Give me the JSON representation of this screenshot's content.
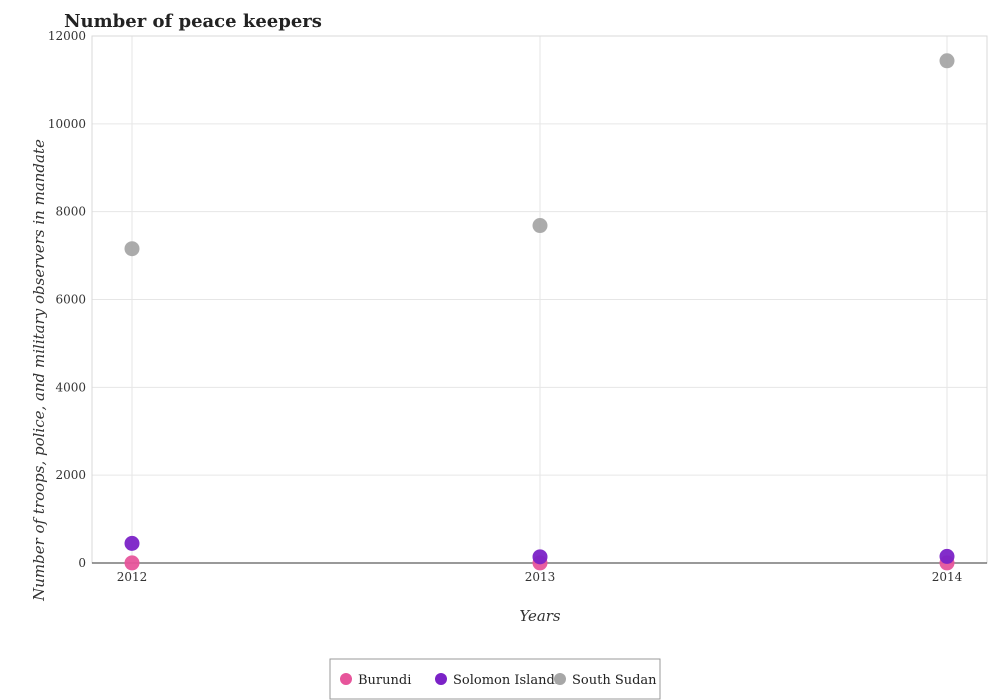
{
  "chart_data": {
    "type": "scatter",
    "title": "Number of peace keepers",
    "xlabel": "Years",
    "ylabel": "Number of troops, police, and military observers in mandate",
    "categories": [
      "2012",
      "2013",
      "2014"
    ],
    "ylim": [
      0,
      12000
    ],
    "yticks": [
      0,
      2000,
      4000,
      6000,
      8000,
      10000,
      12000
    ],
    "grid": true,
    "legend_position": "bottom-center",
    "series": [
      {
        "name": "Burundi",
        "color": "#e7559b",
        "values": [
          2,
          2,
          2
        ]
      },
      {
        "name": "Solomon Islands",
        "color": "#7b22c7",
        "values": [
          447,
          140,
          150
        ]
      },
      {
        "name": "South Sudan",
        "color": "#a7a7a7",
        "values": [
          7157,
          7684,
          11436
        ]
      }
    ]
  }
}
